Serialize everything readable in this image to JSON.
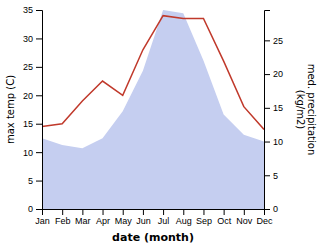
{
  "chart_data": {
    "type": "line",
    "x_label": "date (month)",
    "y_label": "max temp (C)",
    "y2_label": "med. precipitation\n(kg/m2)",
    "categories": [
      "Jan",
      "Feb",
      "Mar",
      "Apr",
      "May",
      "Jun",
      "Jul",
      "Aug",
      "Sep",
      "Oct",
      "Nov",
      "Dec"
    ],
    "ylim": [
      0,
      35
    ],
    "yticks": [
      0,
      5,
      10,
      15,
      20,
      25,
      30,
      35
    ],
    "y2lim": [
      0,
      29.5
    ],
    "y2ticks": [
      0,
      5,
      10,
      15,
      20,
      25
    ],
    "grid": false,
    "series": [
      {
        "type": "area",
        "axis": "y2",
        "color": "#c5cef0",
        "values": [
          10.5,
          9.5,
          9.0,
          10.5,
          14.5,
          20.5,
          29.5,
          29.0,
          22.0,
          14.0,
          11.0,
          10.0
        ]
      },
      {
        "type": "line",
        "color": "#c0392b",
        "values": [
          14.5,
          15.0,
          19.0,
          22.5,
          20.0,
          28.0,
          34.0,
          33.5,
          33.5,
          26.0,
          18.0,
          14.0
        ]
      }
    ]
  }
}
